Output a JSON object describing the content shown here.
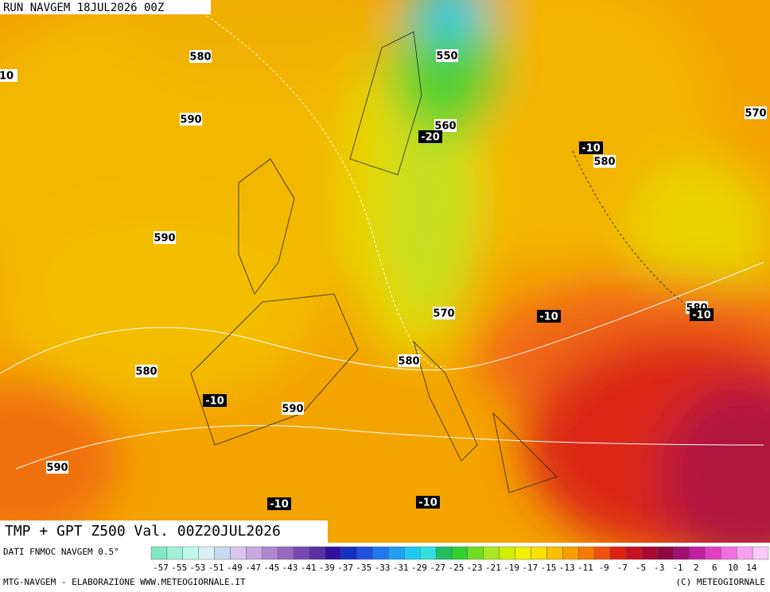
{
  "header": {
    "run": "RUN NAVGEM 18JUL2026 00Z"
  },
  "map": {
    "height_labels": [
      "580",
      "550",
      "10",
      "590",
      "560",
      "580",
      "570",
      "590",
      "570",
      "580",
      "580",
      "580",
      "590",
      "590"
    ],
    "temp_labels": [
      "-20",
      "-10",
      "-10",
      "-10",
      "-10",
      "-10",
      "-10"
    ]
  },
  "title": "TMP + GPT Z500 Val. 00Z20JUL2026",
  "legend": {
    "source": "DATI FNMOC NAVGEM 0.5°",
    "labels": [
      -57,
      -55,
      -53,
      -51,
      -49,
      -47,
      -45,
      -43,
      -41,
      -39,
      -37,
      -35,
      -33,
      -31,
      -29,
      -27,
      -25,
      -23,
      -21,
      -19,
      -17,
      -15,
      -13,
      -11,
      -9,
      -7,
      -5,
      -3,
      -1,
      2,
      6,
      10,
      14
    ]
  },
  "footer": {
    "left": "MTG-NAVGEM - ELABORAZIONE WWW.METEOGIORNALE.IT",
    "right": "(C) METEOGIORNALE"
  }
}
